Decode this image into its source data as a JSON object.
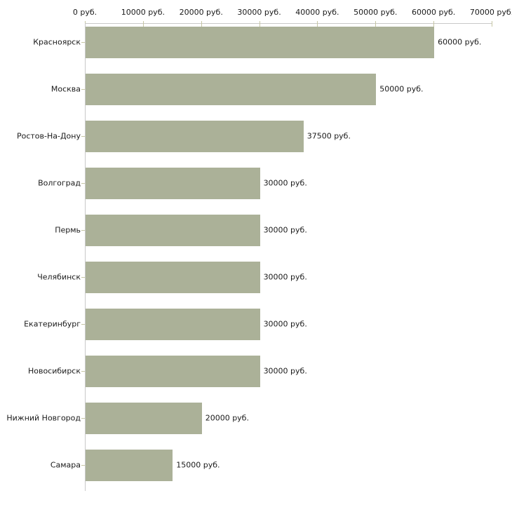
{
  "chart_data": {
    "type": "bar",
    "orientation": "horizontal",
    "title": "",
    "xlabel": "",
    "ylabel": "",
    "grid": false,
    "legend": "none",
    "xlim": [
      0,
      70000
    ],
    "x_ticks": [
      0,
      10000,
      20000,
      30000,
      40000,
      50000,
      60000,
      70000
    ],
    "x_tick_labels": [
      "0 руб.",
      "10000 руб.",
      "20000 руб.",
      "30000 руб.",
      "40000 руб.",
      "50000 руб.",
      "60000 руб.",
      "70000 руб."
    ],
    "categories": [
      "Красноярск",
      "Москва",
      "Ростов-На-Дону",
      "Волгоград",
      "Пермь",
      "Челябинск",
      "Екатеринбург",
      "Новосибирск",
      "Нижний Новгород",
      "Самара"
    ],
    "values": [
      60000,
      50000,
      37500,
      30000,
      30000,
      30000,
      30000,
      30000,
      20000,
      15000
    ],
    "value_labels": [
      "60000 руб.",
      "50000 руб.",
      "37500 руб.",
      "30000 руб.",
      "30000 руб.",
      "30000 руб.",
      "30000 руб.",
      "30000 руб.",
      "20000 руб.",
      "15000 руб."
    ],
    "colors": {
      "bar": "#abb198",
      "axis_line": "#c9c9c9",
      "tick": "#c6c6a4",
      "text": "#1a1a1a",
      "background": "#ffffff"
    }
  }
}
